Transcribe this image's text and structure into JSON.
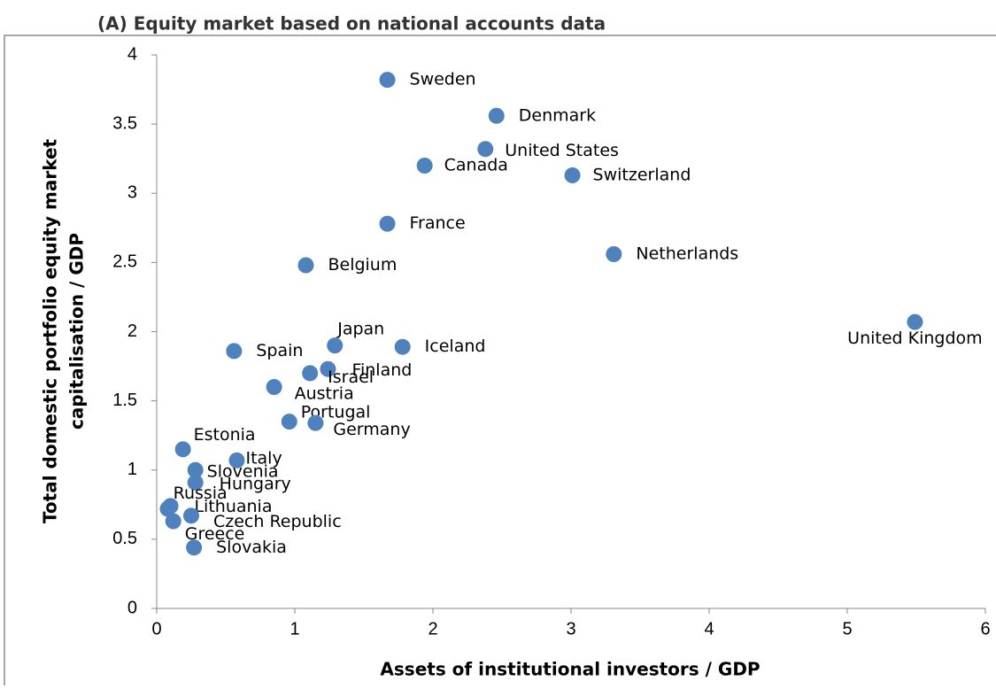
{
  "chart_data": {
    "type": "scatter",
    "title": "(A) Equity market based on national accounts data",
    "x_label": "Assets of institutional investors / GDP",
    "y_label": [
      "Total domestic portfolio equity market",
      "capitalisation / GDP"
    ],
    "color": "#4f81bd",
    "labels": [
      "Sweden",
      "Denmark",
      "United States",
      "Canada",
      "Switzerland",
      "France",
      "Netherlands",
      "Belgium",
      "United Kingdom",
      "Japan",
      "Iceland",
      "Spain",
      "Finland",
      "Israel",
      "Austria",
      "Portugal",
      "Germany",
      "Estonia",
      "Italy",
      "Slovenia",
      "Hungary",
      "Russia",
      "Lithuania",
      "Czech Republic",
      "Greece",
      "Slovakia"
    ],
    "x": [
      1.67,
      2.46,
      2.38,
      1.94,
      3.01,
      1.67,
      3.31,
      1.08,
      5.49,
      1.29,
      1.78,
      0.56,
      1.24,
      1.11,
      0.85,
      0.96,
      1.15,
      0.19,
      0.58,
      0.28,
      0.28,
      0.1,
      0.08,
      0.25,
      0.12,
      0.27
    ],
    "y": [
      3.82,
      3.56,
      3.32,
      3.2,
      3.13,
      2.78,
      2.56,
      2.48,
      2.07,
      1.9,
      1.89,
      1.86,
      1.73,
      1.7,
      1.6,
      1.35,
      1.34,
      1.15,
      1.07,
      1.0,
      0.91,
      0.74,
      0.72,
      0.67,
      0.63,
      0.44
    ],
    "xlim": [
      0,
      6
    ],
    "xticks": [
      0,
      1,
      2,
      3,
      4,
      5,
      6
    ],
    "ylim": [
      0,
      4
    ],
    "yticks": [
      0,
      0.5,
      1,
      1.5,
      2,
      2.5,
      3,
      3.5,
      4
    ]
  }
}
